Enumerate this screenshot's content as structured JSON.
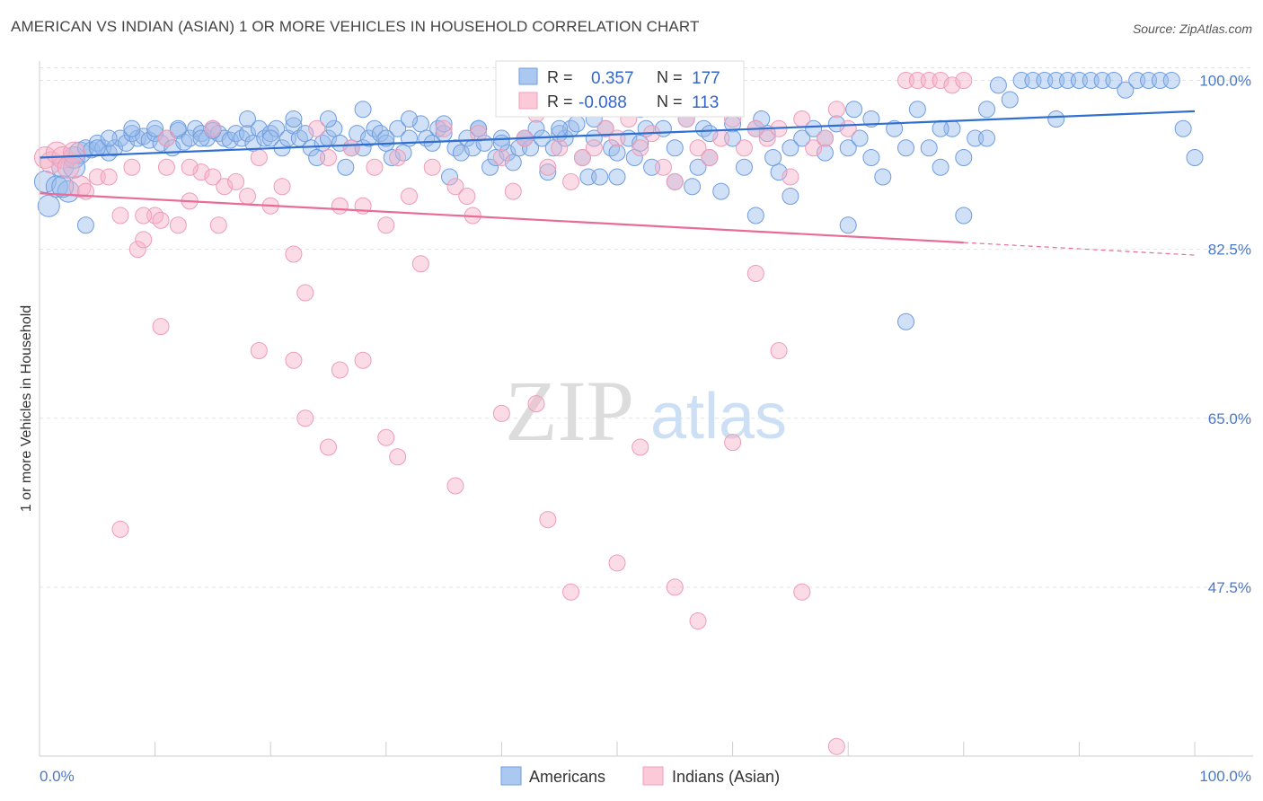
{
  "header": {
    "title": "AMERICAN VS INDIAN (ASIAN) 1 OR MORE VEHICLES IN HOUSEHOLD CORRELATION CHART",
    "source": "Source: ZipAtlas.com"
  },
  "watermark": {
    "zip": "ZIP",
    "atlas": "atlas"
  },
  "stats": [
    {
      "r_label": "R =",
      "r_value": "0.357",
      "n_label": "N =",
      "n_value": "177",
      "color": "#6f9de0"
    },
    {
      "r_label": "R =",
      "r_value": "-0.088",
      "n_label": "N =",
      "n_value": "113",
      "color": "#f0a0b8"
    }
  ],
  "chart_data": {
    "type": "scatter",
    "title": "AMERICAN VS INDIAN (ASIAN) 1 OR MORE VEHICLES IN HOUSEHOLD CORRELATION CHART",
    "xlabel": "",
    "ylabel": "1 or more Vehicles in Household",
    "xlim": [
      0,
      100
    ],
    "ylim": [
      30,
      102
    ],
    "x_tick_labels": [
      "0.0%",
      "100.0%"
    ],
    "y_ticks": [
      47.5,
      65.0,
      82.5,
      100.0
    ],
    "y_tick_labels": [
      "47.5%",
      "65.0%",
      "82.5%",
      "100.0%"
    ],
    "grid": true,
    "legend_position": "bottom-center",
    "series": [
      {
        "name": "Americans",
        "color": "#7aa6e6",
        "trend": {
          "x0": 0,
          "y0": 92.0,
          "x1": 100,
          "y1": 96.8
        },
        "points": [
          [
            0.5,
            89.5
          ],
          [
            0.8,
            87
          ],
          [
            1.5,
            89
          ],
          [
            2,
            91
          ],
          [
            2.5,
            88.5
          ],
          [
            3,
            92
          ],
          [
            3.5,
            92.5
          ],
          [
            4,
            93
          ],
          [
            4.5,
            92.8
          ],
          [
            5,
            93.5
          ],
          [
            5.5,
            93
          ],
          [
            6,
            92.5
          ],
          [
            6.5,
            93
          ],
          [
            7,
            94
          ],
          [
            7.5,
            93.5
          ],
          [
            8,
            94.5
          ],
          [
            8.5,
            94
          ],
          [
            9,
            94.2
          ],
          [
            9.5,
            93.8
          ],
          [
            10,
            94.5
          ],
          [
            10.5,
            93.5
          ],
          [
            11,
            94
          ],
          [
            11.5,
            93
          ],
          [
            12,
            94.8
          ],
          [
            12.5,
            93.6
          ],
          [
            13,
            94
          ],
          [
            13.5,
            95
          ],
          [
            14,
            94.5
          ],
          [
            14.5,
            94
          ],
          [
            15,
            95
          ],
          [
            15.5,
            94.5
          ],
          [
            16,
            94
          ],
          [
            16.5,
            93.8
          ],
          [
            17,
            94.5
          ],
          [
            17.5,
            94
          ],
          [
            18,
            94.5
          ],
          [
            18.5,
            93.5
          ],
          [
            19,
            95
          ],
          [
            19.5,
            94
          ],
          [
            20,
            94.5
          ],
          [
            20.5,
            95
          ],
          [
            21,
            93
          ],
          [
            21.5,
            94
          ],
          [
            22,
            95.3
          ],
          [
            22.5,
            94
          ],
          [
            23,
            94.5
          ],
          [
            23.5,
            93
          ],
          [
            24,
            92
          ],
          [
            24.5,
            93.5
          ],
          [
            25,
            94
          ],
          [
            25.5,
            95
          ],
          [
            26,
            93.5
          ],
          [
            26.5,
            91
          ],
          [
            27,
            93
          ],
          [
            27.5,
            94.5
          ],
          [
            28,
            93
          ],
          [
            28.5,
            94
          ],
          [
            29,
            95
          ],
          [
            29.5,
            94.5
          ],
          [
            30,
            93.5
          ],
          [
            30.5,
            92
          ],
          [
            31,
            95
          ],
          [
            31.5,
            92.5
          ],
          [
            32,
            94
          ],
          [
            33,
            95.5
          ],
          [
            33.5,
            94
          ],
          [
            34,
            93.5
          ],
          [
            34.5,
            95
          ],
          [
            35,
            94.5
          ],
          [
            35.5,
            90
          ],
          [
            36,
            93
          ],
          [
            36.5,
            92.5
          ],
          [
            37,
            94
          ],
          [
            37.5,
            93
          ],
          [
            38,
            95
          ],
          [
            38.5,
            93.5
          ],
          [
            39,
            91
          ],
          [
            39.5,
            92
          ],
          [
            40,
            94
          ],
          [
            40.5,
            92.5
          ],
          [
            41,
            91.5
          ],
          [
            41.5,
            93
          ],
          [
            42,
            94
          ],
          [
            42.5,
            93
          ],
          [
            43,
            95
          ],
          [
            43.5,
            94
          ],
          [
            44,
            90.5
          ],
          [
            44.5,
            93
          ],
          [
            45,
            94.5
          ],
          [
            45.5,
            94
          ],
          [
            46,
            95
          ],
          [
            46.5,
            95.5
          ],
          [
            47,
            92
          ],
          [
            47.5,
            90
          ],
          [
            48,
            94
          ],
          [
            48.5,
            90
          ],
          [
            49,
            95
          ],
          [
            49.5,
            93
          ],
          [
            50,
            92.5
          ],
          [
            51,
            94
          ],
          [
            51.5,
            92
          ],
          [
            52,
            93.5
          ],
          [
            52.5,
            95
          ],
          [
            53,
            91
          ],
          [
            54,
            95
          ],
          [
            55,
            89.5
          ],
          [
            56,
            96
          ],
          [
            56.5,
            89
          ],
          [
            57,
            91
          ],
          [
            57.5,
            95
          ],
          [
            58,
            92
          ],
          [
            59,
            88.5
          ],
          [
            60,
            95.5
          ],
          [
            61,
            91
          ],
          [
            62,
            86
          ],
          [
            62.5,
            96
          ],
          [
            63,
            94.5
          ],
          [
            63.5,
            92
          ],
          [
            64,
            90.5
          ],
          [
            65,
            88
          ],
          [
            66,
            94
          ],
          [
            67,
            95
          ],
          [
            68,
            92.5
          ],
          [
            69,
            95.5
          ],
          [
            70,
            93
          ],
          [
            70.5,
            97
          ],
          [
            71,
            94
          ],
          [
            72,
            92
          ],
          [
            73,
            90
          ],
          [
            74,
            95
          ],
          [
            75,
            93
          ],
          [
            76,
            97
          ],
          [
            77,
            93
          ],
          [
            78,
            91
          ],
          [
            79,
            95
          ],
          [
            80,
            92
          ],
          [
            81,
            94
          ],
          [
            82,
            97
          ],
          [
            83,
            99.5
          ],
          [
            84,
            98
          ],
          [
            85,
            100
          ],
          [
            86,
            100
          ],
          [
            87,
            100
          ],
          [
            88,
            100
          ],
          [
            89,
            100
          ],
          [
            90,
            100
          ],
          [
            91,
            100
          ],
          [
            92,
            100
          ],
          [
            93,
            100
          ],
          [
            94,
            99
          ],
          [
            95,
            100
          ],
          [
            96,
            100
          ],
          [
            97,
            100
          ],
          [
            98,
            100
          ],
          [
            99,
            95
          ],
          [
            100,
            92
          ],
          [
            75,
            75
          ],
          [
            80,
            86
          ],
          [
            70,
            85
          ],
          [
            65,
            93
          ],
          [
            60,
            94
          ],
          [
            58,
            94.5
          ],
          [
            55,
            93
          ],
          [
            50,
            90
          ],
          [
            45,
            95
          ],
          [
            40,
            93.5
          ],
          [
            35,
            95.5
          ],
          [
            30,
            94
          ],
          [
            25,
            96
          ],
          [
            20,
            94
          ],
          [
            15,
            94.8
          ],
          [
            10,
            95
          ],
          [
            5,
            93
          ],
          [
            3,
            91
          ],
          [
            2,
            89
          ],
          [
            4,
            85
          ],
          [
            6,
            94
          ],
          [
            8,
            95
          ],
          [
            12,
            95
          ],
          [
            14,
            94
          ],
          [
            18,
            96
          ],
          [
            22,
            96
          ],
          [
            28,
            97
          ],
          [
            32,
            96
          ],
          [
            38,
            95
          ],
          [
            42,
            94
          ],
          [
            48,
            96
          ],
          [
            52,
            97
          ],
          [
            62,
            95
          ],
          [
            68,
            94
          ],
          [
            72,
            96
          ],
          [
            78,
            95
          ],
          [
            82,
            94
          ],
          [
            88,
            96
          ]
        ]
      },
      {
        "name": "Indians (Asian)",
        "color": "#f4a7c0",
        "trend": {
          "x0": 0,
          "y0": 88.3,
          "x1": 80,
          "y1": 83.2,
          "dash_to_x": 100,
          "dash_to_y": 81.9
        },
        "points": [
          [
            0.5,
            92
          ],
          [
            1,
            91.5
          ],
          [
            1.5,
            92.5
          ],
          [
            2,
            92
          ],
          [
            2.5,
            91
          ],
          [
            3,
            92.5
          ],
          [
            3.5,
            89
          ],
          [
            4,
            88.5
          ],
          [
            5,
            90
          ],
          [
            6,
            90
          ],
          [
            7,
            86
          ],
          [
            8,
            91
          ],
          [
            8.5,
            82.5
          ],
          [
            9,
            83.5
          ],
          [
            10,
            86
          ],
          [
            10.5,
            85.5
          ],
          [
            11,
            91
          ],
          [
            12,
            85
          ],
          [
            13,
            87.5
          ],
          [
            14,
            90.5
          ],
          [
            15,
            90
          ],
          [
            15.5,
            85
          ],
          [
            16,
            89
          ],
          [
            17,
            89.5
          ],
          [
            18,
            88
          ],
          [
            19,
            92
          ],
          [
            20,
            87
          ],
          [
            21,
            89
          ],
          [
            22,
            82
          ],
          [
            23,
            78
          ],
          [
            24,
            95
          ],
          [
            25,
            92
          ],
          [
            26,
            87
          ],
          [
            27,
            93
          ],
          [
            28,
            87
          ],
          [
            29,
            91
          ],
          [
            30,
            85
          ],
          [
            31,
            92
          ],
          [
            32,
            88
          ],
          [
            33,
            81
          ],
          [
            34,
            91
          ],
          [
            35,
            95
          ],
          [
            36,
            89
          ],
          [
            37,
            88
          ],
          [
            37.5,
            86
          ],
          [
            38,
            94.5
          ],
          [
            40,
            92
          ],
          [
            41,
            88.5
          ],
          [
            42,
            94
          ],
          [
            43,
            96.5
          ],
          [
            44,
            91
          ],
          [
            45,
            93
          ],
          [
            46,
            89.5
          ],
          [
            47,
            92
          ],
          [
            48,
            93
          ],
          [
            49,
            95
          ],
          [
            50,
            94
          ],
          [
            51,
            96
          ],
          [
            52,
            93
          ],
          [
            53,
            94.5
          ],
          [
            54,
            91
          ],
          [
            55,
            89.5
          ],
          [
            56,
            96
          ],
          [
            57,
            93
          ],
          [
            58,
            92
          ],
          [
            59,
            94
          ],
          [
            60,
            96
          ],
          [
            61,
            93
          ],
          [
            62,
            95
          ],
          [
            63,
            94
          ],
          [
            64,
            95
          ],
          [
            65,
            90
          ],
          [
            66,
            96
          ],
          [
            67,
            93
          ],
          [
            68,
            94
          ],
          [
            69,
            97
          ],
          [
            70,
            95
          ],
          [
            75,
            100
          ],
          [
            76,
            100
          ],
          [
            77,
            100
          ],
          [
            78,
            100
          ],
          [
            79,
            99.5
          ],
          [
            80,
            100
          ],
          [
            10.5,
            74.5
          ],
          [
            19,
            72
          ],
          [
            22,
            71
          ],
          [
            23,
            65
          ],
          [
            25,
            62
          ],
          [
            26,
            70
          ],
          [
            28,
            71
          ],
          [
            30,
            63
          ],
          [
            31,
            61
          ],
          [
            36,
            58
          ],
          [
            40,
            65.5
          ],
          [
            43,
            66.5
          ],
          [
            44,
            54.5
          ],
          [
            46,
            47
          ],
          [
            50,
            50
          ],
          [
            52,
            62
          ],
          [
            55,
            47.5
          ],
          [
            57,
            44
          ],
          [
            60,
            62.5
          ],
          [
            62,
            80
          ],
          [
            64,
            72
          ],
          [
            66,
            47
          ],
          [
            69,
            31
          ],
          [
            7,
            53.5
          ],
          [
            9,
            86
          ],
          [
            11,
            94
          ],
          [
            13,
            91
          ],
          [
            15,
            95
          ]
        ]
      }
    ]
  },
  "legend": {
    "items": [
      {
        "label": "Americans",
        "color": "#aac8f0",
        "border": "#6f9de0"
      },
      {
        "label": "Indians (Asian)",
        "color": "#fbc9d8",
        "border": "#f0a0b8"
      }
    ]
  }
}
